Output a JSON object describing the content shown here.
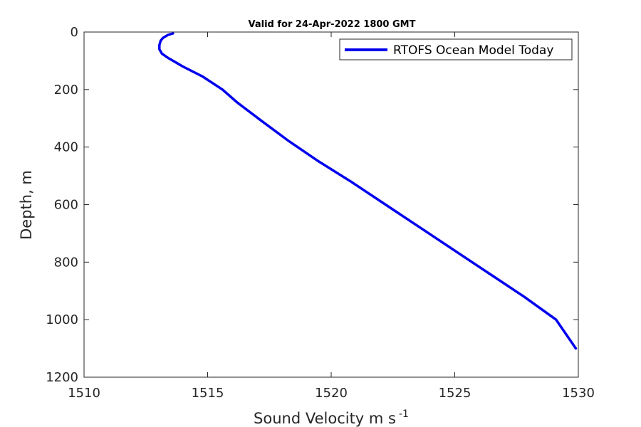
{
  "chart_data": {
    "type": "line",
    "title": "Valid for 24-Apr-2022 1800 GMT",
    "xlabel": "Sound Velocity m s",
    "xlabel_superscript": "-1",
    "ylabel": "Depth, m",
    "xlim": [
      1510,
      1530
    ],
    "ylim": [
      0,
      1200
    ],
    "y_reversed": true,
    "xticks": [
      1510,
      1515,
      1520,
      1525,
      1530
    ],
    "yticks": [
      0,
      200,
      400,
      600,
      800,
      1000,
      1200
    ],
    "grid": false,
    "legend_position": "top-right",
    "series": [
      {
        "name": "RTOFS Ocean Model Today",
        "color": "#0000ee",
        "x": [
          1513.6,
          1513.4,
          1513.2,
          1513.1,
          1513.05,
          1513.05,
          1513.15,
          1513.4,
          1514.0,
          1514.8,
          1515.6,
          1516.2,
          1517.2,
          1518.3,
          1519.5,
          1520.8,
          1522.2,
          1523.6,
          1525.0,
          1526.4,
          1527.8,
          1529.1,
          1529.9
        ],
        "y": [
          5,
          10,
          20,
          30,
          45,
          60,
          75,
          90,
          120,
          155,
          200,
          245,
          310,
          380,
          450,
          520,
          600,
          680,
          760,
          840,
          920,
          1000,
          1100
        ]
      }
    ]
  }
}
